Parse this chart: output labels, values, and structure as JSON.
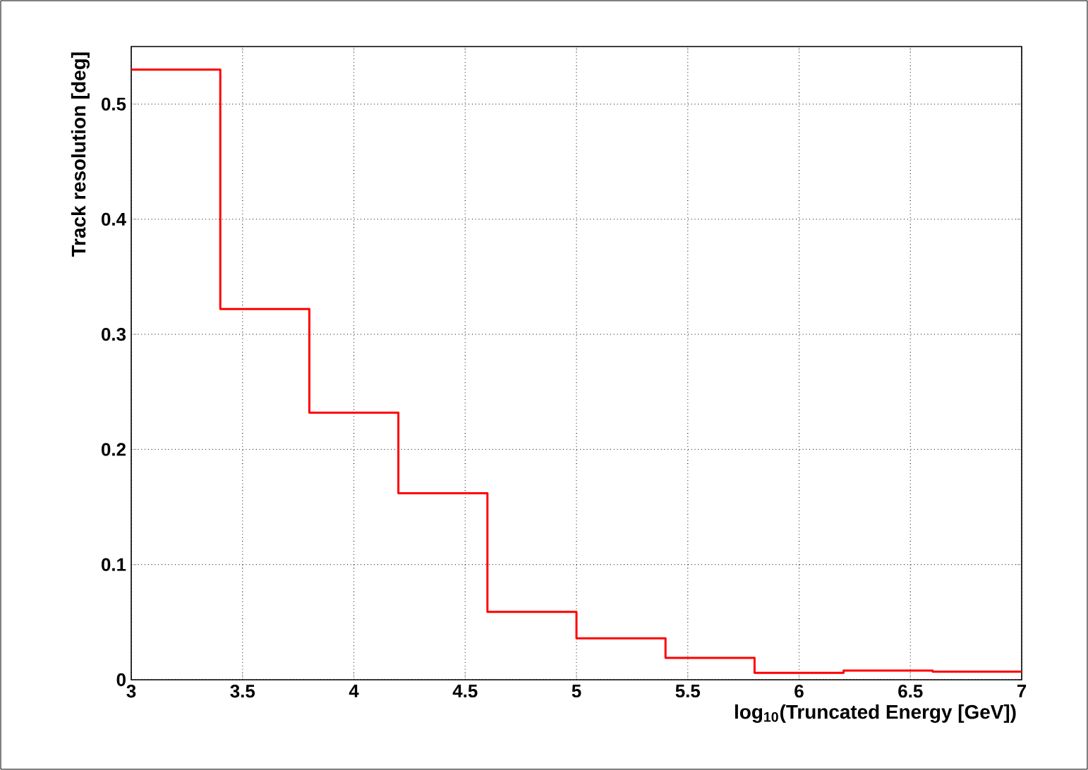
{
  "chart_data": {
    "type": "histogram",
    "xlabel": "log$_{10}$(Truncated Energy [GeV])",
    "ylabel": "Track resolution [deg]",
    "bins": [
      3,
      3.4,
      3.8,
      4.2,
      4.6,
      5.0,
      5.4,
      5.8,
      6.2,
      6.6,
      7.0
    ],
    "values": [
      0.53,
      0.322,
      0.232,
      0.162,
      0.059,
      0.036,
      0.019,
      0.006,
      0.008,
      0.007
    ],
    "color": "#ff0000",
    "xlim": [
      3,
      7
    ],
    "ylim": [
      0,
      0.55
    ],
    "xticks": [
      3,
      3.5,
      4,
      4.5,
      5,
      5.5,
      6,
      6.5,
      7
    ],
    "yticks": [
      0,
      0.1,
      0.2,
      0.3,
      0.4,
      0.5
    ],
    "grid": true
  }
}
